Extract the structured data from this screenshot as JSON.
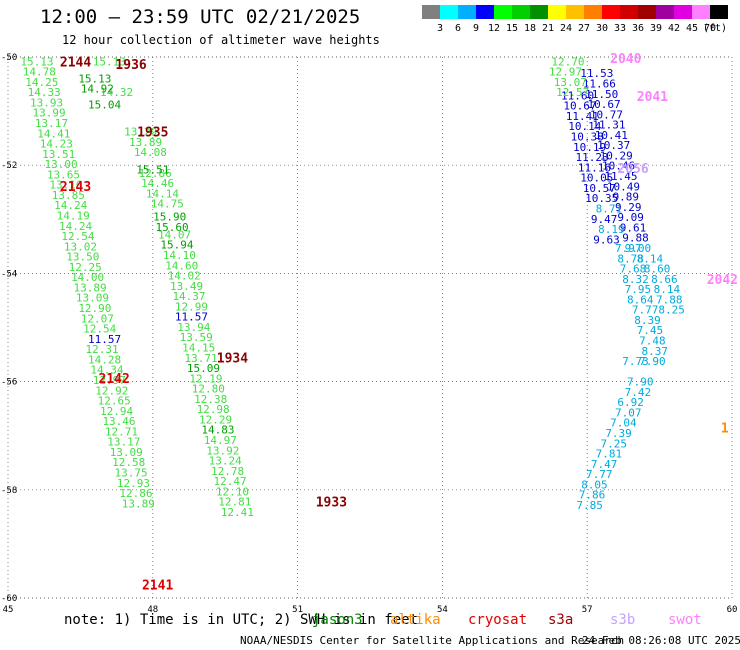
{
  "title": "12:00 – 23:59 UTC 02/21/2025",
  "subtitle": "12 hour collection of altimeter wave heights",
  "color_scale": {
    "unit": "(ft)",
    "colors": [
      "#808080",
      "#00ffff",
      "#00b0ff",
      "#0000ff",
      "#00ff00",
      "#00d000",
      "#009000",
      "#ffff00",
      "#ffc000",
      "#ff8000",
      "#ff0000",
      "#d00000",
      "#a00000",
      "#a000a0",
      "#e000e0",
      "#ff80ff",
      "#000000"
    ],
    "labels": [
      "3",
      "6",
      "9",
      "12",
      "15",
      "18",
      "21",
      "24",
      "27",
      "30",
      "33",
      "36",
      "39",
      "42",
      "45",
      "70"
    ]
  },
  "footer": {
    "note": "note:  1) Time is in UTC; 2) SWH is in feet",
    "satellites": [
      {
        "name": "jason3",
        "color": "#008000"
      },
      {
        "name": "altika",
        "color": "#ff8c00"
      },
      {
        "name": "cryosat",
        "color": "#e00000"
      },
      {
        "name": "s3a",
        "color": "#a00000"
      },
      {
        "name": "s3b",
        "color": "#c8a0ff"
      },
      {
        "name": "swot",
        "color": "#ff80ff"
      }
    ],
    "credit": "NOAA/NESDIS Center for Satellite Applications and Research",
    "timestamp": "24 Feb 08:26:08 UTC 2025"
  },
  "chart_data": {
    "type": "scatter",
    "title": "12:00 – 23:59 UTC 02/21/2025",
    "xlabel": "",
    "ylabel": "",
    "xlim": [
      45,
      60
    ],
    "ylim": [
      -60,
      -50
    ],
    "x_ticks": [
      45,
      48,
      51,
      54,
      57,
      60
    ],
    "y_ticks": [
      -50,
      -52,
      -54,
      -56,
      -58,
      -60
    ],
    "grid": true,
    "colors": {
      "light_green": "#44dd44",
      "green": "#00a000",
      "blue": "#0000cc",
      "cyan": "#00aadd",
      "orange": "#ff8c00",
      "lilac": "#c8a0ff",
      "pink": "#ff80ff",
      "red": "#dd0000",
      "dark_red": "#8b0000"
    },
    "time_labels": [
      {
        "x": 46.4,
        "y": -50.08,
        "label": "2144",
        "color": "dark_red"
      },
      {
        "x": 47.55,
        "y": -50.13,
        "label": "1936",
        "color": "dark_red"
      },
      {
        "x": 48.0,
        "y": -51.38,
        "label": "1935",
        "color": "dark_red"
      },
      {
        "x": 46.4,
        "y": -52.38,
        "label": "2143",
        "color": "red"
      },
      {
        "x": 49.65,
        "y": -55.55,
        "label": "1934",
        "color": "dark_red"
      },
      {
        "x": 47.2,
        "y": -55.93,
        "label": "2142",
        "color": "red"
      },
      {
        "x": 51.7,
        "y": -58.22,
        "label": "1933",
        "color": "dark_red"
      },
      {
        "x": 48.1,
        "y": -59.75,
        "label": "2141",
        "color": "red"
      },
      {
        "x": 57.8,
        "y": -50.02,
        "label": "2040",
        "color": "pink"
      },
      {
        "x": 58.35,
        "y": -50.72,
        "label": "2041",
        "color": "pink"
      },
      {
        "x": 57.95,
        "y": -52.05,
        "label": "2056",
        "color": "lilac"
      },
      {
        "x": 59.8,
        "y": -54.1,
        "label": "2042",
        "color": "pink"
      },
      {
        "x": 59.85,
        "y": -56.85,
        "label": "1",
        "color": "orange"
      }
    ],
    "series": [
      {
        "name": "cryosat",
        "color": "light_green",
        "points": [
          [
            45.6,
            -50.08,
            "15.13"
          ],
          [
            45.65,
            -50.27,
            "14.78"
          ],
          [
            45.7,
            -50.46,
            "14.25"
          ],
          [
            45.75,
            -50.65,
            "14.33"
          ],
          [
            45.8,
            -50.84,
            "13.93"
          ],
          [
            45.85,
            -51.03,
            "13.99"
          ],
          [
            45.9,
            -51.22,
            "13.17"
          ],
          [
            45.95,
            -51.41,
            "14.41"
          ],
          [
            46.0,
            -51.6,
            "14.23"
          ],
          [
            46.05,
            -51.79,
            "13.51"
          ],
          [
            46.1,
            -51.98,
            "13.00"
          ],
          [
            46.15,
            -52.17,
            "13.65"
          ],
          [
            46.2,
            -52.36,
            "13.16"
          ],
          [
            46.25,
            -52.55,
            "13.85"
          ],
          [
            46.3,
            -52.74,
            "14.24"
          ],
          [
            46.35,
            -52.93,
            "14.19"
          ],
          [
            46.4,
            -53.12,
            "14.24"
          ],
          [
            46.45,
            -53.31,
            "12.54"
          ],
          [
            46.5,
            -53.5,
            "13.02"
          ],
          [
            46.55,
            -53.69,
            "13.50"
          ],
          [
            46.6,
            -53.88,
            "12.25"
          ],
          [
            46.65,
            -54.07,
            "14.00"
          ],
          [
            46.7,
            -54.26,
            "13.89"
          ],
          [
            46.75,
            -54.45,
            "13.09"
          ],
          [
            46.8,
            -54.64,
            "12.90"
          ],
          [
            46.85,
            -54.83,
            "12.07"
          ],
          [
            46.9,
            -55.02,
            "12.54"
          ],
          [
            46.95,
            -55.4,
            "12.31"
          ],
          [
            47.0,
            -55.59,
            "14.28"
          ],
          [
            47.05,
            -55.78,
            "14.34"
          ],
          [
            47.1,
            -55.97,
            "12.97"
          ],
          [
            47.15,
            -56.16,
            "12.92"
          ],
          [
            47.2,
            -56.35,
            "12.65"
          ],
          [
            47.25,
            -56.54,
            "12.94"
          ],
          [
            47.3,
            -56.73,
            "13.46"
          ],
          [
            47.35,
            -56.92,
            "12.71"
          ],
          [
            47.4,
            -57.11,
            "13.17"
          ],
          [
            47.45,
            -57.3,
            "13.09"
          ],
          [
            47.5,
            -57.49,
            "12.58"
          ],
          [
            47.55,
            -57.68,
            "13.75"
          ],
          [
            47.6,
            -57.87,
            "12.93"
          ],
          [
            47.65,
            -58.06,
            "12.86"
          ],
          [
            47.7,
            -58.25,
            "13.89"
          ]
        ]
      },
      {
        "name": "jason3",
        "color": "light_green",
        "points": [
          [
            47.1,
            -50.08,
            "15.13"
          ],
          [
            47.25,
            -50.65,
            "14.32"
          ],
          [
            47.75,
            -51.38,
            "13.29"
          ],
          [
            47.85,
            -51.57,
            "13.89"
          ],
          [
            47.95,
            -51.76,
            "14.08"
          ],
          [
            48.05,
            -52.14,
            "12.86"
          ],
          [
            48.1,
            -52.33,
            "14.46"
          ],
          [
            48.2,
            -52.52,
            "14.14"
          ],
          [
            48.3,
            -52.71,
            "14.75"
          ],
          [
            48.45,
            -53.28,
            "14.07"
          ],
          [
            48.55,
            -53.66,
            "14.10"
          ],
          [
            48.6,
            -53.85,
            "14.60"
          ],
          [
            48.65,
            -54.04,
            "14.02"
          ],
          [
            48.7,
            -54.23,
            "13.49"
          ],
          [
            48.75,
            -54.42,
            "14.37"
          ],
          [
            48.8,
            -54.61,
            "12.99"
          ],
          [
            48.85,
            -54.99,
            "13.94"
          ],
          [
            48.9,
            -55.18,
            "13.59"
          ],
          [
            48.95,
            -55.37,
            "14.15"
          ],
          [
            49.0,
            -55.56,
            "13.71"
          ],
          [
            49.1,
            -55.94,
            "12.19"
          ],
          [
            49.15,
            -56.13,
            "12.80"
          ],
          [
            49.2,
            -56.32,
            "12.38"
          ],
          [
            49.25,
            -56.51,
            "12.98"
          ],
          [
            49.3,
            -56.7,
            "12.29"
          ],
          [
            49.4,
            -57.08,
            "14.97"
          ],
          [
            49.45,
            -57.27,
            "13.92"
          ],
          [
            49.5,
            -57.46,
            "13.24"
          ],
          [
            49.55,
            -57.65,
            "12.78"
          ],
          [
            49.6,
            -57.84,
            "12.47"
          ],
          [
            49.65,
            -58.03,
            "12.10"
          ],
          [
            49.7,
            -58.22,
            "12.81"
          ],
          [
            49.75,
            -58.41,
            "12.41"
          ]
        ]
      },
      {
        "name": "jason3",
        "color": "green",
        "points": [
          [
            46.8,
            -50.4,
            "15.13"
          ],
          [
            46.85,
            -50.58,
            "14.92"
          ],
          [
            47.0,
            -50.88,
            "15.04"
          ],
          [
            48.0,
            -52.08,
            "15.51"
          ],
          [
            48.35,
            -52.95,
            "15.90"
          ],
          [
            48.4,
            -53.14,
            "15.60"
          ],
          [
            48.5,
            -53.47,
            "15.94"
          ],
          [
            49.05,
            -55.75,
            "15.09"
          ],
          [
            49.35,
            -56.89,
            "14.83"
          ]
        ]
      },
      {
        "name": "cryosat",
        "color": "blue",
        "points": [
          [
            47.0,
            -55.21,
            "11.57"
          ],
          [
            48.8,
            -54.8,
            "11.57"
          ],
          [
            57.2,
            -50.3,
            "11.53"
          ],
          [
            57.25,
            -50.49,
            "11.66"
          ],
          [
            57.3,
            -50.68,
            "11.50"
          ],
          [
            57.35,
            -50.87,
            "10.67"
          ],
          [
            57.4,
            -51.06,
            "10.77"
          ],
          [
            57.45,
            -51.25,
            "11.31"
          ],
          [
            57.5,
            -51.44,
            "10.41"
          ],
          [
            57.55,
            -51.63,
            "10.37"
          ],
          [
            57.6,
            -51.82,
            "10.29"
          ],
          [
            57.65,
            -52.01,
            "10.46"
          ],
          [
            57.7,
            -52.2,
            "11.45"
          ],
          [
            57.75,
            -52.39,
            "10.49"
          ],
          [
            57.8,
            -52.58,
            "9.89"
          ],
          [
            57.85,
            -52.77,
            "9.29"
          ],
          [
            57.9,
            -52.96,
            "9.09"
          ],
          [
            57.95,
            -53.15,
            "9.61"
          ],
          [
            58.0,
            -53.34,
            "9.88"
          ],
          [
            56.8,
            -50.71,
            "11.60"
          ],
          [
            56.85,
            -50.9,
            "10.67"
          ],
          [
            56.9,
            -51.09,
            "11.41"
          ],
          [
            56.95,
            -51.28,
            "10.14"
          ],
          [
            57.0,
            -51.47,
            "10.38"
          ],
          [
            57.05,
            -51.66,
            "10.19"
          ],
          [
            57.1,
            -51.85,
            "11.23"
          ],
          [
            57.15,
            -52.04,
            "11.16"
          ],
          [
            57.2,
            -52.23,
            "10.05"
          ],
          [
            57.25,
            -52.42,
            "10.57"
          ],
          [
            57.3,
            -52.61,
            "10.35"
          ],
          [
            57.35,
            -52.99,
            "9.47"
          ],
          [
            57.4,
            -53.37,
            "9.63"
          ]
        ]
      },
      {
        "name": "altika",
        "color": "light_green",
        "points": [
          [
            56.6,
            -50.08,
            "12.70"
          ],
          [
            56.55,
            -50.27,
            "12.97"
          ],
          [
            56.65,
            -50.46,
            "13.07"
          ],
          [
            56.7,
            -50.65,
            "12.57"
          ]
        ]
      },
      {
        "name": "altika",
        "color": "cyan",
        "points": [
          [
            57.45,
            -52.8,
            "8.71"
          ],
          [
            57.5,
            -53.18,
            "8.19"
          ],
          [
            57.85,
            -53.53,
            "7.97"
          ],
          [
            58.05,
            -53.53,
            "9.00"
          ],
          [
            57.9,
            -53.72,
            "8.78"
          ],
          [
            58.3,
            -53.72,
            "8.14"
          ],
          [
            57.95,
            -53.91,
            "7.68"
          ],
          [
            58.45,
            -53.91,
            "8.60"
          ],
          [
            58.0,
            -54.1,
            "8.32"
          ],
          [
            58.6,
            -54.1,
            "8.66"
          ],
          [
            58.05,
            -54.29,
            "7.95"
          ],
          [
            58.65,
            -54.29,
            "8.14"
          ],
          [
            58.1,
            -54.48,
            "8.64"
          ],
          [
            58.7,
            -54.48,
            "7.88"
          ],
          [
            58.2,
            -54.67,
            "7.77"
          ],
          [
            58.75,
            -54.67,
            "8.25"
          ],
          [
            58.25,
            -54.86,
            "8.39"
          ],
          [
            58.3,
            -55.05,
            "7.45"
          ],
          [
            58.35,
            -55.24,
            "7.48"
          ],
          [
            58.4,
            -55.43,
            "8.37"
          ],
          [
            58.0,
            -55.62,
            "7.73"
          ],
          [
            58.35,
            -55.62,
            "7.90"
          ],
          [
            58.1,
            -56.0,
            "7.90"
          ],
          [
            58.05,
            -56.19,
            "7.42"
          ],
          [
            57.9,
            -56.38,
            "6.92"
          ],
          [
            57.85,
            -56.57,
            "7.07"
          ],
          [
            57.75,
            -56.76,
            "7.04"
          ],
          [
            57.65,
            -56.95,
            "7.39"
          ],
          [
            57.55,
            -57.14,
            "7.25"
          ],
          [
            57.45,
            -57.33,
            "7.81"
          ],
          [
            57.35,
            -57.52,
            "7.47"
          ],
          [
            57.25,
            -57.71,
            "7.77"
          ],
          [
            57.15,
            -57.9,
            "8.05"
          ],
          [
            57.1,
            -58.09,
            "7.86"
          ],
          [
            57.05,
            -58.28,
            "7.85"
          ]
        ]
      }
    ]
  }
}
